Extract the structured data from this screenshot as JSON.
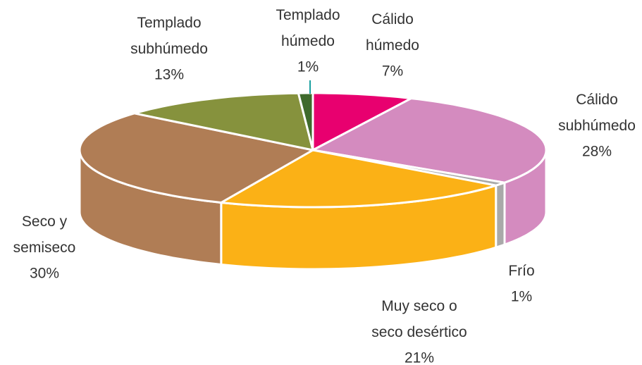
{
  "chart_data": {
    "type": "pie",
    "categories": [
      "Cálido\nhúmedo",
      "Cálido\nsubhúmedo",
      "Frío",
      "Muy seco o\nseco desértico",
      "Seco y\nsemiseco",
      "Templado\nsubhúmedo",
      "Templado\nhúmedo"
    ],
    "values": [
      7,
      28,
      1,
      21,
      30,
      13,
      1
    ],
    "value_labels": [
      "7%",
      "28%",
      "1%",
      "21%",
      "30%",
      "13%",
      "1%"
    ],
    "colors": [
      "#e8006f",
      "#d48bbf",
      "#a9a9a9",
      "#fbb116",
      "#b07d55",
      "#86923d",
      "#3f6a2c"
    ]
  }
}
